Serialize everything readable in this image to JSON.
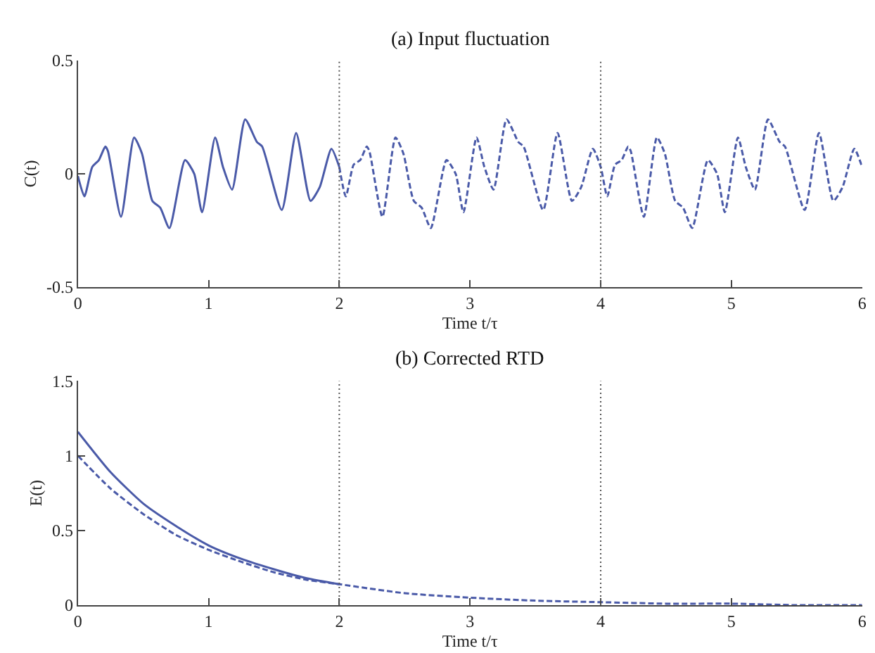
{
  "chart_data": [
    {
      "type": "line",
      "title": "(a) Input fluctuation",
      "xlabel": "Time t/τ",
      "ylabel": "C(t)",
      "xlim": [
        0,
        6
      ],
      "ylim": [
        -0.5,
        0.5
      ],
      "xticks": [
        0,
        1,
        2,
        3,
        4,
        5,
        6
      ],
      "yticks": [
        -0.5,
        0,
        0.5
      ],
      "marker": "none",
      "series": [
        {
          "color": "#4a5aa8",
          "line_style": "solid",
          "x": [
            0,
            0.05,
            0.11,
            0.16,
            0.21,
            0.23,
            0.33,
            0.43,
            0.49,
            0.57,
            0.63,
            0.7,
            0.82,
            0.89,
            0.95,
            1.05,
            1.11,
            1.18,
            1.28,
            1.37,
            1.41,
            1.56,
            1.67,
            1.78,
            1.85,
            1.94,
            2.0
          ],
          "values": [
            -0.01,
            -0.1,
            0.03,
            0.06,
            0.12,
            0.1,
            -0.19,
            0.16,
            0.09,
            -0.12,
            -0.15,
            -0.24,
            0.06,
            0.0,
            -0.17,
            0.16,
            0.03,
            -0.07,
            0.24,
            0.14,
            0.12,
            -0.16,
            0.18,
            -0.12,
            -0.06,
            0.11,
            0.03
          ]
        },
        {
          "color": "#4a5aa8",
          "line_style": "dashed",
          "x": [
            2.0,
            2.05,
            2.11,
            2.16,
            2.21,
            2.23,
            2.33,
            2.43,
            2.49,
            2.57,
            2.63,
            2.7,
            2.82,
            2.89,
            2.95,
            3.05,
            3.11,
            3.18,
            3.28,
            3.37,
            3.41,
            3.56,
            3.67,
            3.78,
            3.85,
            3.94,
            4.0,
            4.05,
            4.11,
            4.16,
            4.21,
            4.23,
            4.33,
            4.43,
            4.49,
            4.57,
            4.63,
            4.7,
            4.82,
            4.89,
            4.95,
            5.05,
            5.11,
            5.18,
            5.28,
            5.37,
            5.41,
            5.56,
            5.67,
            5.78,
            5.85,
            5.94,
            6.0
          ],
          "values": [
            0.03,
            -0.1,
            0.04,
            0.06,
            0.12,
            0.1,
            -0.19,
            0.16,
            0.09,
            -0.12,
            -0.15,
            -0.24,
            0.06,
            0.0,
            -0.17,
            0.16,
            0.03,
            -0.07,
            0.24,
            0.14,
            0.12,
            -0.16,
            0.18,
            -0.12,
            -0.06,
            0.11,
            0.03,
            -0.1,
            0.04,
            0.06,
            0.12,
            0.1,
            -0.19,
            0.16,
            0.09,
            -0.12,
            -0.15,
            -0.24,
            0.06,
            0.0,
            -0.17,
            0.16,
            0.03,
            -0.07,
            0.24,
            0.14,
            0.12,
            -0.16,
            0.18,
            -0.12,
            -0.06,
            0.11,
            0.03
          ]
        }
      ],
      "ref_lines": [
        {
          "axis": "x",
          "value": 2,
          "color": "#555555",
          "line_style": "dotted"
        },
        {
          "axis": "x",
          "value": 4,
          "color": "#555555",
          "line_style": "dotted"
        }
      ]
    },
    {
      "type": "line",
      "title": "(b) Corrected RTD",
      "xlabel": "Time t/τ",
      "ylabel": "E(t)",
      "xlim": [
        0,
        6
      ],
      "ylim": [
        0,
        1.5
      ],
      "xticks": [
        0,
        1,
        2,
        3,
        4,
        5,
        6
      ],
      "yticks": [
        0,
        0.5,
        1,
        1.5
      ],
      "marker": "none",
      "series": [
        {
          "color": "#4a5aa8",
          "line_style": "solid",
          "x": [
            0,
            0.25,
            0.5,
            0.75,
            1,
            1.25,
            1.5,
            1.75,
            2
          ],
          "values": [
            1.16,
            0.89,
            0.68,
            0.53,
            0.4,
            0.31,
            0.24,
            0.18,
            0.14
          ]
        },
        {
          "color": "#4a5aa8",
          "line_style": "dashed",
          "x": [
            0,
            0.25,
            0.5,
            0.75,
            1,
            1.25,
            1.5,
            1.75,
            2,
            2.5,
            3,
            3.5,
            4,
            4.5,
            5,
            5.5,
            6
          ],
          "values": [
            1.0,
            0.78,
            0.61,
            0.47,
            0.37,
            0.29,
            0.22,
            0.17,
            0.14,
            0.08,
            0.05,
            0.03,
            0.02,
            0.01,
            0.01,
            0.0,
            0.0
          ]
        }
      ],
      "ref_lines": [
        {
          "axis": "x",
          "value": 2,
          "color": "#555555",
          "line_style": "dotted"
        },
        {
          "axis": "x",
          "value": 4,
          "color": "#555555",
          "line_style": "dotted"
        }
      ]
    }
  ]
}
